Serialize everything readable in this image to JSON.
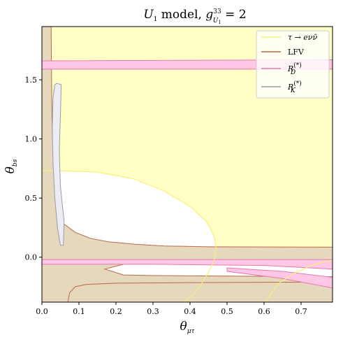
{
  "chart_data": {
    "type": "area",
    "title": {
      "text": "U",
      "sub": "1",
      "rest": " model, ",
      "g": "g",
      "sup": "33",
      "sub2": "U",
      "sub3": "1",
      "eq": " = 2"
    },
    "xlabel": {
      "base": "θ",
      "sub": "μτ"
    },
    "ylabel": {
      "base": "θ",
      "sub": "bs"
    },
    "xlim": [
      0.0,
      0.785
    ],
    "ylim": [
      -0.38,
      1.95
    ],
    "xticks": [
      0.0,
      0.1,
      0.2,
      0.3,
      0.4,
      0.5,
      0.6,
      0.7
    ],
    "xtick_labels": [
      "0.0",
      "0.1",
      "0.2",
      "0.3",
      "0.4",
      "0.5",
      "0.6",
      "0.7"
    ],
    "yticks": [
      0.0,
      0.5,
      1.0,
      1.5
    ],
    "ytick_labels": [
      "0.0",
      "0.5",
      "1.0",
      "1.5"
    ],
    "grid": false,
    "legend_position": "top-right",
    "legend": [
      {
        "label_base": "τ → eνν̄",
        "sup": "",
        "sub": "",
        "color": "#f5f07a"
      },
      {
        "label_base": "LFV",
        "sup": "",
        "sub": "",
        "color": "#b86a48"
      },
      {
        "label_base": "R",
        "sup": "(*)",
        "sub": "D",
        "color": "#e878b0"
      },
      {
        "label_base": "R",
        "sup": "(*)",
        "sub": "K",
        "color": "#9a9aa8"
      }
    ],
    "colors": {
      "tau_fill": "#ffffc6",
      "tau_edge": "#f5f07a",
      "lfv_fill": "#e6d8bd",
      "lfv_edge": "#b86a48",
      "rd_fill": "#ffc7e6",
      "rd_edge": "#e878b0",
      "rk_fill": "#ececf3",
      "rk_edge": "#9a9aa8"
    },
    "regions": {
      "tau_allowed_excluded_white": {
        "boundary": [
          [
            0.0,
            0.73
          ],
          [
            0.06,
            0.73
          ],
          [
            0.15,
            0.72
          ],
          [
            0.25,
            0.66
          ],
          [
            0.33,
            0.56
          ],
          [
            0.4,
            0.43
          ],
          [
            0.445,
            0.3
          ],
          [
            0.465,
            0.18
          ],
          [
            0.47,
            0.08
          ],
          [
            0.465,
            -0.03
          ],
          [
            0.45,
            -0.13
          ],
          [
            0.43,
            -0.23
          ],
          [
            0.41,
            -0.31
          ],
          [
            0.385,
            -0.38
          ]
        ]
      },
      "tau_allowed_lower_right": {
        "boundary": [
          [
            0.605,
            -0.38
          ],
          [
            0.62,
            -0.3
          ],
          [
            0.64,
            -0.22
          ],
          [
            0.68,
            -0.14
          ],
          [
            0.72,
            -0.08
          ],
          [
            0.76,
            -0.04
          ],
          [
            0.785,
            -0.03
          ]
        ]
      },
      "lfv_left_band": {
        "x_max": 0.025
      },
      "lfv_curve": [
        [
          0.025,
          1.95
        ],
        [
          0.027,
          1.2
        ],
        [
          0.03,
          0.85
        ],
        [
          0.035,
          0.55
        ],
        [
          0.045,
          0.38
        ],
        [
          0.06,
          0.28
        ],
        [
          0.09,
          0.21
        ],
        [
          0.13,
          0.16
        ],
        [
          0.18,
          0.13
        ],
        [
          0.25,
          0.11
        ],
        [
          0.33,
          0.095
        ],
        [
          0.45,
          0.088
        ],
        [
          0.785,
          0.085
        ]
      ],
      "lfv_lower_band": [
        [
          0.07,
          -0.38
        ],
        [
          0.075,
          -0.3
        ],
        [
          0.09,
          -0.25
        ],
        [
          0.12,
          -0.23
        ],
        [
          0.2,
          -0.22
        ],
        [
          0.4,
          -0.215
        ],
        [
          0.785,
          -0.21
        ]
      ],
      "lfv_inner_island": {
        "upper": [
          [
            0.17,
            -0.1
          ],
          [
            0.22,
            -0.06
          ],
          [
            0.3,
            -0.05
          ],
          [
            0.4,
            -0.045
          ],
          [
            0.785,
            -0.04
          ]
        ],
        "lower": [
          [
            0.17,
            -0.1
          ],
          [
            0.22,
            -0.15
          ],
          [
            0.3,
            -0.155
          ],
          [
            0.5,
            -0.16
          ],
          [
            0.785,
            -0.165
          ]
        ]
      },
      "rd_band_top": {
        "y_low": 1.59,
        "y_high": 1.66,
        "x_end_high": 0.785,
        "upper_edge": [
          [
            0.0,
            1.65
          ],
          [
            0.3,
            1.67
          ],
          [
            0.5,
            1.7
          ],
          [
            0.65,
            1.76
          ],
          [
            0.73,
            1.85
          ],
          [
            0.785,
            1.95
          ]
        ]
      },
      "rd_band_bottom": {
        "upper": [
          [
            0.0,
            -0.02
          ],
          [
            0.3,
            -0.02
          ],
          [
            0.6,
            -0.02
          ],
          [
            0.785,
            -0.02
          ]
        ],
        "lower": [
          [
            0.0,
            -0.06
          ],
          [
            0.3,
            -0.06
          ],
          [
            0.6,
            -0.07
          ],
          [
            0.785,
            -0.1
          ]
        ],
        "tail_upper": [
          [
            0.5,
            -0.09
          ],
          [
            0.65,
            -0.12
          ],
          [
            0.785,
            -0.17
          ]
        ],
        "tail_lower": [
          [
            0.5,
            -0.12
          ],
          [
            0.65,
            -0.18
          ],
          [
            0.785,
            -0.26
          ]
        ]
      },
      "rk_contour": [
        [
          0.04,
          1.47
        ],
        [
          0.052,
          1.46
        ],
        [
          0.05,
          1.2
        ],
        [
          0.047,
          0.9
        ],
        [
          0.05,
          0.6
        ],
        [
          0.06,
          0.3
        ],
        [
          0.058,
          0.1
        ],
        [
          0.05,
          0.1
        ],
        [
          0.042,
          0.25
        ],
        [
          0.035,
          0.5
        ],
        [
          0.03,
          0.8
        ],
        [
          0.028,
          1.1
        ],
        [
          0.03,
          1.35
        ],
        [
          0.035,
          1.46
        ],
        [
          0.04,
          1.47
        ]
      ]
    }
  }
}
